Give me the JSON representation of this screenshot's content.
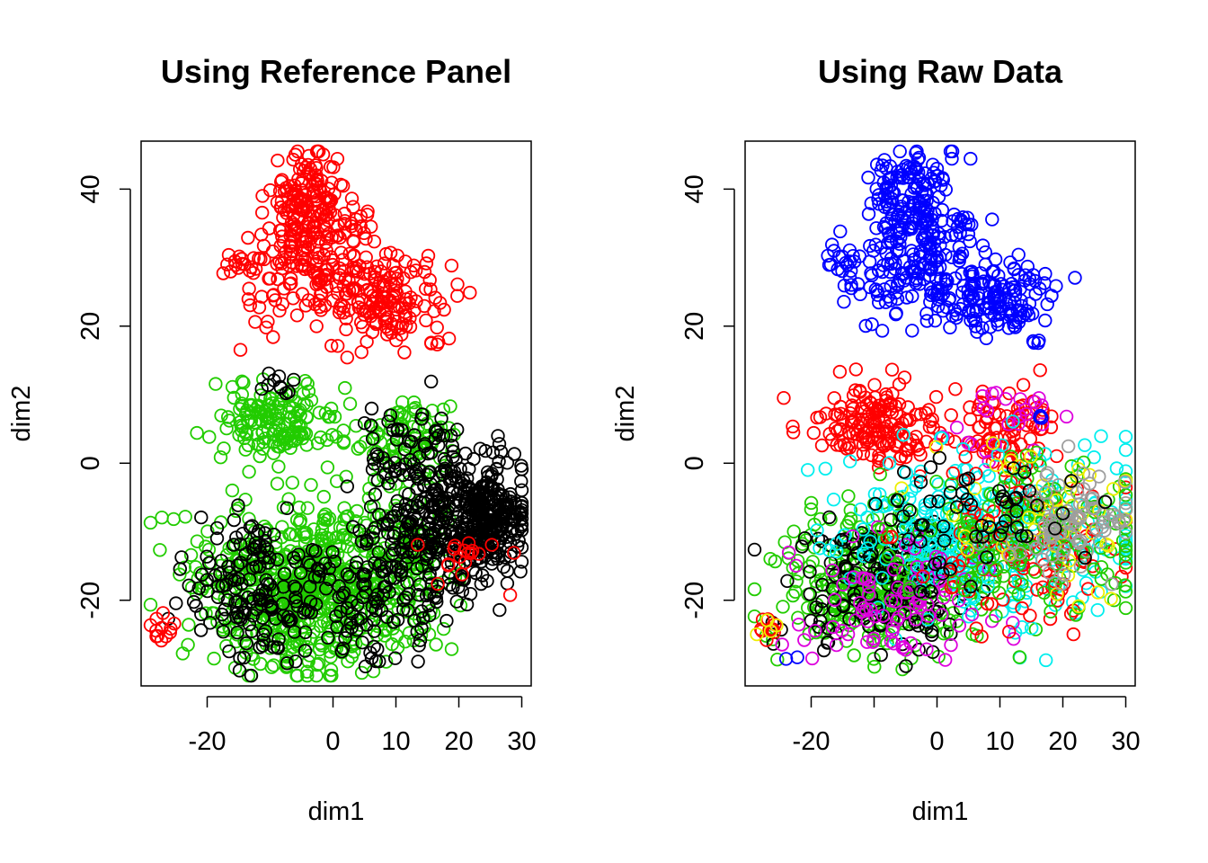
{
  "chart_data": [
    {
      "type": "scatter",
      "title": "Using Reference Panel",
      "xlabel": "dim1",
      "ylabel": "dim2",
      "xlim": [
        -30.5,
        31.5
      ],
      "ylim": [
        -32.5,
        47
      ],
      "x_ticks": [
        -20,
        -10,
        0,
        10,
        20,
        30
      ],
      "x_tick_labels": [
        "-20",
        "",
        "0",
        "10",
        "20",
        "30"
      ],
      "y_ticks": [
        -20,
        0,
        20,
        40
      ],
      "y_tick_labels": [
        "-20",
        "0",
        "20",
        "40"
      ],
      "marker": "open-circle",
      "grid": false,
      "legend": "none",
      "colors": {
        "red": "#FF0000",
        "green": "#22CC00",
        "black": "#000000"
      },
      "clusters": [
        {
          "color": "red",
          "cx": -4,
          "cy": 38,
          "sx": 3,
          "sy": 4,
          "n": 150
        },
        {
          "color": "red",
          "cx": -3,
          "cy": 28,
          "sx": 6,
          "sy": 4,
          "n": 160
        },
        {
          "color": "red",
          "cx": 9,
          "cy": 24,
          "sx": 5,
          "sy": 3,
          "n": 130
        },
        {
          "color": "red",
          "cx": 4,
          "cy": 35,
          "sx": 1,
          "sy": 1,
          "n": 12
        },
        {
          "color": "red",
          "cx": -15,
          "cy": 29,
          "sx": 1.5,
          "sy": 0.8,
          "n": 12
        },
        {
          "color": "red",
          "cx": 16,
          "cy": 17.6,
          "sx": 0.6,
          "sy": 0.3,
          "n": 4
        },
        {
          "color": "green",
          "cx": -9,
          "cy": 6,
          "sx": 5,
          "sy": 3,
          "n": 160
        },
        {
          "color": "green",
          "cx": 12,
          "cy": 4,
          "sx": 4,
          "sy": 3,
          "n": 90
        },
        {
          "color": "green",
          "cx": -3,
          "cy": -18,
          "sx": 9,
          "sy": 6,
          "n": 650
        },
        {
          "color": "green",
          "cx": 14,
          "cy": -12,
          "sx": 4,
          "sy": 5,
          "n": 80
        },
        {
          "color": "black",
          "cx": 18,
          "cy": -8,
          "sx": 6,
          "sy": 5,
          "n": 330
        },
        {
          "color": "black",
          "cx": 25,
          "cy": -8,
          "sx": 2.5,
          "sy": 3,
          "n": 160
        },
        {
          "color": "black",
          "cx": -12,
          "cy": -18,
          "sx": 6,
          "sy": 5,
          "n": 160
        },
        {
          "color": "black",
          "cx": 8,
          "cy": -20,
          "sx": 6,
          "sy": 5,
          "n": 120
        },
        {
          "color": "black",
          "cx": -9,
          "cy": 11,
          "sx": 1.5,
          "sy": 1.5,
          "n": 10
        },
        {
          "color": "black",
          "cx": 12,
          "cy": 3,
          "sx": 4,
          "sy": 3,
          "n": 40
        },
        {
          "color": "red",
          "cx": -27,
          "cy": -24,
          "sx": 1,
          "sy": 1,
          "n": 12
        },
        {
          "color": "red",
          "cx": 22,
          "cy": -14,
          "sx": 4,
          "sy": 2,
          "n": 18
        }
      ]
    },
    {
      "type": "scatter",
      "title": "Using Raw Data",
      "xlabel": "dim1",
      "ylabel": "dim2",
      "xlim": [
        -30.5,
        31.5
      ],
      "ylim": [
        -32.5,
        47
      ],
      "x_ticks": [
        -20,
        -10,
        0,
        10,
        20,
        30
      ],
      "x_tick_labels": [
        "-20",
        "",
        "0",
        "10",
        "20",
        "30"
      ],
      "y_ticks": [
        -20,
        0,
        20,
        40
      ],
      "y_tick_labels": [
        "-20",
        "0",
        "20",
        "40"
      ],
      "marker": "open-circle",
      "grid": false,
      "legend": "none",
      "colors": {
        "blue": "#0000FF",
        "red": "#FF0000",
        "green": "#22CC00",
        "black": "#000000",
        "cyan": "#00EEEE",
        "magenta": "#DD00DD",
        "yellow": "#EEEE00",
        "gray": "#9E9E9E"
      },
      "clusters": [
        {
          "color": "blue",
          "cx": -4,
          "cy": 38,
          "sx": 3,
          "sy": 4,
          "n": 150
        },
        {
          "color": "blue",
          "cx": -3,
          "cy": 28,
          "sx": 6,
          "sy": 4,
          "n": 160
        },
        {
          "color": "blue",
          "cx": 9,
          "cy": 24,
          "sx": 5,
          "sy": 3,
          "n": 130
        },
        {
          "color": "blue",
          "cx": 4,
          "cy": 35,
          "sx": 1,
          "sy": 1,
          "n": 12
        },
        {
          "color": "blue",
          "cx": -15,
          "cy": 29,
          "sx": 1.5,
          "sy": 0.8,
          "n": 12
        },
        {
          "color": "blue",
          "cx": 16,
          "cy": 17.6,
          "sx": 0.6,
          "sy": 0.3,
          "n": 4
        },
        {
          "color": "red",
          "cx": -9,
          "cy": 6,
          "sx": 5,
          "sy": 3,
          "n": 170
        },
        {
          "color": "red",
          "cx": 12,
          "cy": 5,
          "sx": 4,
          "sy": 3,
          "n": 80
        },
        {
          "color": "magenta",
          "cx": 11,
          "cy": 6,
          "sx": 4,
          "sy": 3,
          "n": 25
        },
        {
          "color": "green",
          "cx": -8,
          "cy": -17,
          "sx": 8,
          "sy": 5,
          "n": 380
        },
        {
          "color": "black",
          "cx": -8,
          "cy": -18,
          "sx": 7,
          "sy": 5,
          "n": 160
        },
        {
          "color": "cyan",
          "cx": 8,
          "cy": -10,
          "sx": 11,
          "sy": 6,
          "n": 330
        },
        {
          "color": "magenta",
          "cx": -6,
          "cy": -20,
          "sx": 8,
          "sy": 5,
          "n": 90
        },
        {
          "color": "red",
          "cx": 15,
          "cy": -12,
          "sx": 8,
          "sy": 6,
          "n": 110
        },
        {
          "color": "green",
          "cx": 15,
          "cy": -10,
          "sx": 9,
          "sy": 6,
          "n": 160
        },
        {
          "color": "yellow",
          "cx": 18,
          "cy": -8,
          "sx": 7,
          "sy": 6,
          "n": 45
        },
        {
          "color": "gray",
          "cx": 22,
          "cy": -9,
          "sx": 5,
          "sy": 4,
          "n": 80
        },
        {
          "color": "black",
          "cx": 4,
          "cy": -8,
          "sx": 8,
          "sy": 5,
          "n": 60
        },
        {
          "color": "red",
          "cx": -27,
          "cy": -24,
          "sx": 1,
          "sy": 1,
          "n": 10
        },
        {
          "color": "yellow",
          "cx": -27,
          "cy": -25,
          "sx": 1,
          "sy": 1,
          "n": 4
        },
        {
          "color": "blue",
          "cx": -24,
          "cy": -28,
          "sx": 1,
          "sy": 0.5,
          "n": 2
        },
        {
          "color": "blue",
          "cx": 17,
          "cy": 6.5,
          "sx": 0.5,
          "sy": 0.4,
          "n": 3
        }
      ]
    }
  ]
}
